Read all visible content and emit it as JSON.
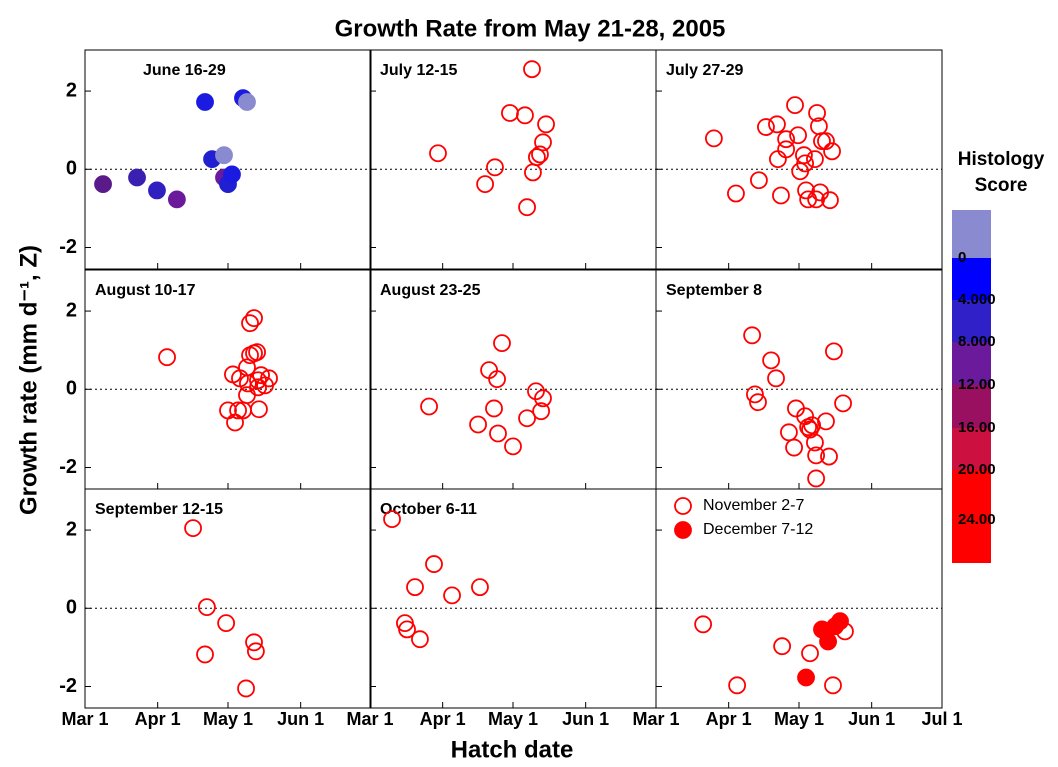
{
  "chart_data": {
    "type": "scatter",
    "title": "Growth Rate from May 21-28, 2005",
    "xlabel": "Hatch date",
    "ylabel": "Growth rate  (mm d⁻¹, Z)",
    "xlim": [
      60,
      182
    ],
    "xticks": [
      {
        "value": 60,
        "label": "Mar 1"
      },
      {
        "value": 91,
        "label": "Apr 1"
      },
      {
        "value": 121,
        "label": "May 1"
      },
      {
        "value": 152,
        "label": "Jun 1"
      },
      {
        "value": 182,
        "label": "Jul 1"
      }
    ],
    "ylim": [
      -2.55,
      3.05
    ],
    "yticks": [
      -2,
      0,
      2
    ],
    "marker_color": "#ff0000",
    "panels": [
      {
        "title": "June 16-29",
        "x": [
          67.7,
          82.2,
          90.7,
          99.2,
          111.2,
          114.2,
          119.3,
          119.3,
          121,
          122.7,
          127.4,
          129.1
        ],
        "y": [
          -0.38,
          -0.21,
          -0.54,
          -0.77,
          1.72,
          0.26,
          0.36,
          -0.21,
          -0.38,
          -0.13,
          1.82,
          1.72
        ],
        "colors": [
          "#5a1a8a",
          "#3a20b0",
          "#3020c0",
          "#6a1a9a",
          "#1a1ae0",
          "#2020d0",
          "#8a8ad0",
          "#6a1a9a",
          "#2020d0",
          "#1a1ae0",
          "#1a1ae0",
          "#8a8ad0"
        ]
      },
      {
        "title": "July 12-15",
        "x": [
          89,
          109.1,
          113.3,
          119.7,
          126.1,
          129.1,
          127,
          129.5,
          131.2,
          132.5,
          133.8,
          135.1
        ],
        "y": [
          0.41,
          -0.38,
          0.05,
          1.44,
          1.38,
          2.56,
          -0.97,
          -0.08,
          0.31,
          0.38,
          0.69,
          1.15
        ]
      },
      {
        "title": "July 27-29",
        "x": [
          84.7,
          94.1,
          103.9,
          106.9,
          111.6,
          112,
          113.3,
          115.5,
          115.5,
          119.3,
          120.6,
          121.5,
          123.1,
          123.6,
          124,
          124.9,
          128.3,
          127.8,
          128.7,
          129.5,
          130,
          130.8,
          132.5,
          134.2,
          135.1
        ],
        "y": [
          0.79,
          -0.62,
          -0.28,
          1.08,
          1.15,
          0.26,
          -0.67,
          0.77,
          0.51,
          1.64,
          0.87,
          -0.05,
          0.36,
          0.15,
          -0.54,
          -0.77,
          -0.77,
          0.26,
          1.44,
          1.1,
          -0.59,
          0.72,
          0.72,
          -0.79,
          0.46
        ]
      },
      {
        "title": "August 10-17",
        "x": [
          95,
          121,
          123.1,
          124,
          125.3,
          126.1,
          127.4,
          129.1,
          129.1,
          130.4,
          130.4,
          132.1,
          132.1,
          133.4,
          133.8,
          133.8,
          134.2,
          135.1,
          136.8,
          138.5,
          129.5
        ],
        "y": [
          0.82,
          -0.54,
          0.38,
          -0.85,
          -0.54,
          0.28,
          -0.54,
          0.56,
          -0.15,
          1.69,
          0.87,
          1.82,
          0.92,
          0.95,
          0.05,
          0.23,
          -0.51,
          0.36,
          0.1,
          0.28,
          0.15
        ]
      },
      {
        "title": "August 23-25",
        "x": [
          85.2,
          106.1,
          110.8,
          112.9,
          114.2,
          114.6,
          116.3,
          121,
          127,
          130.8,
          133,
          133.8
        ],
        "y": [
          -0.44,
          -0.9,
          0.49,
          -0.49,
          0.26,
          -1.13,
          1.18,
          -1.46,
          -0.74,
          -0.05,
          -0.56,
          -0.23
        ]
      },
      {
        "title": "September 8",
        "x": [
          101,
          102.2,
          103.5,
          109.1,
          111.2,
          116.7,
          118.9,
          119.7,
          123.6,
          124.9,
          125.7,
          126.6,
          127.8,
          128.3,
          128.3,
          132.5,
          133.8,
          135.9,
          139.8
        ],
        "y": [
          1.38,
          -0.13,
          -0.33,
          0.74,
          0.28,
          -1.1,
          -1.49,
          -0.49,
          -0.69,
          -0.97,
          -1.03,
          -0.92,
          -1.36,
          -1.69,
          -2.28,
          -0.82,
          -1.72,
          0.97,
          -0.36
        ]
      },
      {
        "title": "September 12-15",
        "x": [
          106.1,
          111.2,
          112,
          120.2,
          128.7,
          132.1,
          132.9
        ],
        "y": [
          2.05,
          -1.18,
          0.03,
          -0.38,
          -2.05,
          -0.87,
          -1.1
        ]
      },
      {
        "title": "October 6-11",
        "x": [
          69.4,
          74.9,
          75.8,
          79.2,
          81.3,
          87.3,
          95,
          106.9
        ],
        "y": [
          2.28,
          -0.38,
          -0.54,
          0.54,
          -0.79,
          1.13,
          0.33,
          0.54
        ]
      },
      {
        "series": [
          {
            "name": "November 2-7",
            "filled": false,
            "x": [
              80.1,
              94.6,
              113.8,
              125.7,
              135.5,
              140.6
            ],
            "y": [
              -0.41,
              -1.97,
              -0.97,
              -1.15,
              -1.97,
              -0.59
            ]
          },
          {
            "name": "December 7-12",
            "filled": true,
            "x": [
              124,
              130.8,
              133.4,
              138.5,
              136.4
            ],
            "y": [
              -1.77,
              -0.54,
              -0.85,
              -0.33,
              -0.46
            ]
          }
        ]
      }
    ],
    "colorbar": {
      "title": [
        "Histology",
        "Score"
      ],
      "colors": [
        "#8a8ad0",
        "#0000ff",
        "#3020c8",
        "#6a1a9a",
        "#9a1060",
        "#cc1040",
        "#ff0000"
      ],
      "labels": [
        "0",
        "4.000",
        "8.000",
        "12.00",
        "16.00",
        "20.00",
        "24.00"
      ]
    }
  }
}
